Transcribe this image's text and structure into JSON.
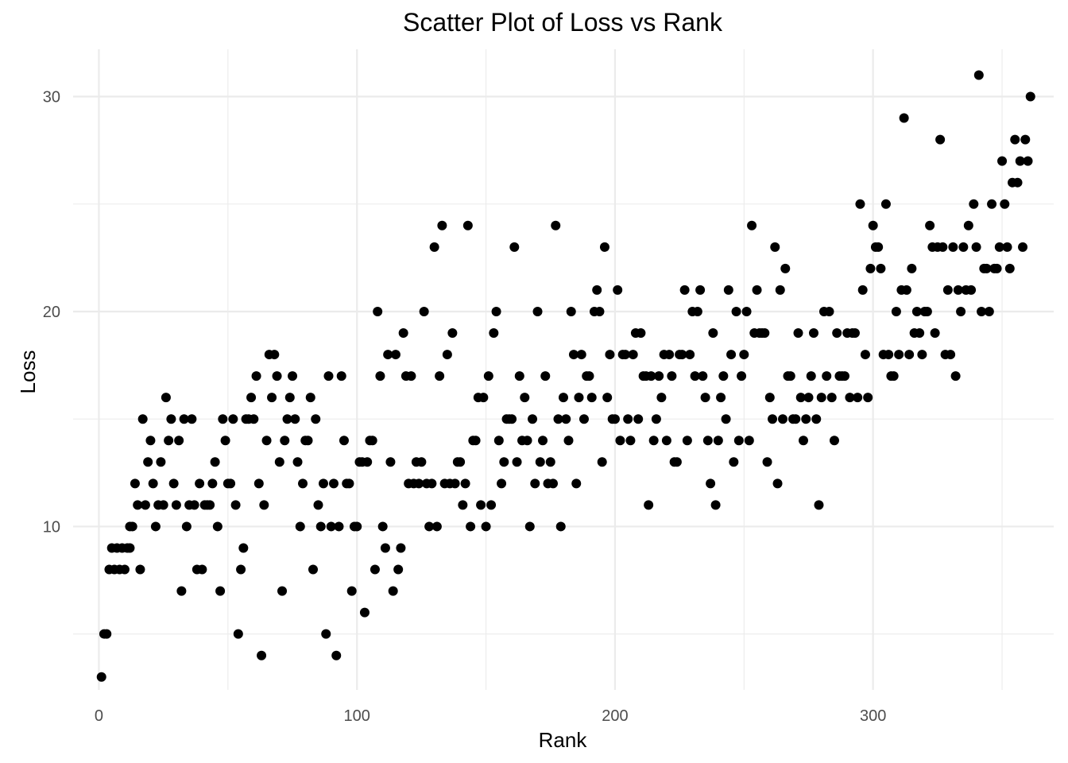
{
  "chart_data": {
    "type": "scatter",
    "title": "Scatter Plot of Loss vs Rank",
    "xlabel": "Rank",
    "ylabel": "Loss",
    "xlim": [
      -10,
      370
    ],
    "ylim": [
      2.4,
      32.2
    ],
    "x_ticks": [
      0,
      100,
      200,
      300
    ],
    "y_ticks": [
      10,
      20,
      30
    ],
    "x_tick_labels": [
      "0",
      "100",
      "200",
      "300"
    ],
    "y_tick_labels": [
      "10",
      "20",
      "30"
    ],
    "grid": true,
    "point_color": "#000000",
    "points": [
      [
        1,
        3
      ],
      [
        2,
        5
      ],
      [
        3,
        5
      ],
      [
        4,
        8
      ],
      [
        5,
        9
      ],
      [
        6,
        8
      ],
      [
        7,
        9
      ],
      [
        8,
        8
      ],
      [
        9,
        9
      ],
      [
        10,
        8
      ],
      [
        11,
        9
      ],
      [
        12,
        9
      ],
      [
        12,
        10
      ],
      [
        13,
        10
      ],
      [
        14,
        12
      ],
      [
        15,
        11
      ],
      [
        16,
        8
      ],
      [
        17,
        15
      ],
      [
        18,
        11
      ],
      [
        19,
        13
      ],
      [
        20,
        14
      ],
      [
        21,
        12
      ],
      [
        22,
        10
      ],
      [
        23,
        11
      ],
      [
        24,
        13
      ],
      [
        25,
        11
      ],
      [
        26,
        16
      ],
      [
        27,
        14
      ],
      [
        28,
        15
      ],
      [
        29,
        12
      ],
      [
        30,
        11
      ],
      [
        31,
        14
      ],
      [
        32,
        7
      ],
      [
        33,
        15
      ],
      [
        34,
        10
      ],
      [
        35,
        11
      ],
      [
        36,
        15
      ],
      [
        37,
        11
      ],
      [
        38,
        8
      ],
      [
        39,
        12
      ],
      [
        40,
        8
      ],
      [
        41,
        11
      ],
      [
        42,
        11
      ],
      [
        43,
        11
      ],
      [
        44,
        12
      ],
      [
        45,
        13
      ],
      [
        46,
        10
      ],
      [
        47,
        7
      ],
      [
        48,
        15
      ],
      [
        49,
        14
      ],
      [
        50,
        12
      ],
      [
        51,
        12
      ],
      [
        52,
        15
      ],
      [
        53,
        11
      ],
      [
        54,
        5
      ],
      [
        55,
        8
      ],
      [
        56,
        9
      ],
      [
        57,
        15
      ],
      [
        58,
        15
      ],
      [
        59,
        16
      ],
      [
        60,
        15
      ],
      [
        61,
        17
      ],
      [
        62,
        12
      ],
      [
        63,
        4
      ],
      [
        64,
        11
      ],
      [
        65,
        14
      ],
      [
        66,
        18
      ],
      [
        67,
        16
      ],
      [
        68,
        18
      ],
      [
        69,
        17
      ],
      [
        70,
        13
      ],
      [
        71,
        7
      ],
      [
        72,
        14
      ],
      [
        73,
        15
      ],
      [
        74,
        16
      ],
      [
        75,
        17
      ],
      [
        76,
        15
      ],
      [
        77,
        13
      ],
      [
        78,
        10
      ],
      [
        79,
        12
      ],
      [
        80,
        14
      ],
      [
        81,
        14
      ],
      [
        82,
        16
      ],
      [
        83,
        8
      ],
      [
        84,
        15
      ],
      [
        85,
        11
      ],
      [
        86,
        10
      ],
      [
        87,
        12
      ],
      [
        88,
        5
      ],
      [
        89,
        17
      ],
      [
        90,
        10
      ],
      [
        91,
        12
      ],
      [
        92,
        4
      ],
      [
        93,
        10
      ],
      [
        94,
        17
      ],
      [
        95,
        14
      ],
      [
        96,
        12
      ],
      [
        97,
        12
      ],
      [
        98,
        7
      ],
      [
        99,
        10
      ],
      [
        100,
        10
      ],
      [
        101,
        13
      ],
      [
        102,
        13
      ],
      [
        103,
        6
      ],
      [
        104,
        13
      ],
      [
        105,
        14
      ],
      [
        106,
        14
      ],
      [
        107,
        8
      ],
      [
        108,
        20
      ],
      [
        109,
        17
      ],
      [
        110,
        10
      ],
      [
        111,
        9
      ],
      [
        112,
        18
      ],
      [
        113,
        13
      ],
      [
        114,
        7
      ],
      [
        115,
        18
      ],
      [
        116,
        8
      ],
      [
        117,
        9
      ],
      [
        118,
        19
      ],
      [
        119,
        17
      ],
      [
        120,
        12
      ],
      [
        121,
        17
      ],
      [
        122,
        12
      ],
      [
        123,
        13
      ],
      [
        124,
        12
      ],
      [
        125,
        13
      ],
      [
        126,
        20
      ],
      [
        127,
        12
      ],
      [
        128,
        10
      ],
      [
        129,
        12
      ],
      [
        130,
        23
      ],
      [
        131,
        10
      ],
      [
        132,
        17
      ],
      [
        133,
        24
      ],
      [
        134,
        12
      ],
      [
        135,
        18
      ],
      [
        136,
        12
      ],
      [
        137,
        19
      ],
      [
        138,
        12
      ],
      [
        139,
        13
      ],
      [
        140,
        13
      ],
      [
        141,
        11
      ],
      [
        142,
        12
      ],
      [
        143,
        24
      ],
      [
        144,
        10
      ],
      [
        145,
        14
      ],
      [
        146,
        14
      ],
      [
        147,
        16
      ],
      [
        148,
        11
      ],
      [
        149,
        16
      ],
      [
        150,
        10
      ],
      [
        151,
        17
      ],
      [
        152,
        11
      ],
      [
        153,
        19
      ],
      [
        154,
        20
      ],
      [
        155,
        14
      ],
      [
        156,
        12
      ],
      [
        157,
        13
      ],
      [
        158,
        15
      ],
      [
        159,
        15
      ],
      [
        160,
        15
      ],
      [
        161,
        23
      ],
      [
        162,
        13
      ],
      [
        163,
        17
      ],
      [
        164,
        14
      ],
      [
        165,
        16
      ],
      [
        166,
        14
      ],
      [
        167,
        10
      ],
      [
        168,
        15
      ],
      [
        169,
        12
      ],
      [
        170,
        20
      ],
      [
        171,
        13
      ],
      [
        172,
        14
      ],
      [
        173,
        17
      ],
      [
        174,
        12
      ],
      [
        175,
        13
      ],
      [
        176,
        12
      ],
      [
        177,
        24
      ],
      [
        178,
        15
      ],
      [
        179,
        10
      ],
      [
        180,
        16
      ],
      [
        181,
        15
      ],
      [
        182,
        14
      ],
      [
        183,
        20
      ],
      [
        184,
        18
      ],
      [
        185,
        12
      ],
      [
        186,
        16
      ],
      [
        187,
        18
      ],
      [
        188,
        15
      ],
      [
        189,
        17
      ],
      [
        190,
        17
      ],
      [
        191,
        16
      ],
      [
        192,
        20
      ],
      [
        193,
        21
      ],
      [
        194,
        20
      ],
      [
        195,
        13
      ],
      [
        196,
        23
      ],
      [
        197,
        16
      ],
      [
        198,
        18
      ],
      [
        199,
        15
      ],
      [
        200,
        15
      ],
      [
        201,
        21
      ],
      [
        202,
        14
      ],
      [
        203,
        18
      ],
      [
        204,
        18
      ],
      [
        205,
        15
      ],
      [
        206,
        14
      ],
      [
        207,
        18
      ],
      [
        208,
        19
      ],
      [
        209,
        15
      ],
      [
        210,
        19
      ],
      [
        211,
        17
      ],
      [
        212,
        17
      ],
      [
        213,
        11
      ],
      [
        214,
        17
      ],
      [
        215,
        14
      ],
      [
        216,
        15
      ],
      [
        217,
        17
      ],
      [
        218,
        16
      ],
      [
        219,
        18
      ],
      [
        220,
        14
      ],
      [
        221,
        18
      ],
      [
        222,
        17
      ],
      [
        223,
        13
      ],
      [
        224,
        13
      ],
      [
        225,
        18
      ],
      [
        226,
        18
      ],
      [
        227,
        21
      ],
      [
        228,
        14
      ],
      [
        229,
        18
      ],
      [
        230,
        20
      ],
      [
        231,
        17
      ],
      [
        232,
        20
      ],
      [
        233,
        21
      ],
      [
        234,
        17
      ],
      [
        235,
        16
      ],
      [
        236,
        14
      ],
      [
        237,
        12
      ],
      [
        238,
        19
      ],
      [
        239,
        11
      ],
      [
        240,
        14
      ],
      [
        241,
        16
      ],
      [
        242,
        17
      ],
      [
        243,
        15
      ],
      [
        244,
        21
      ],
      [
        245,
        18
      ],
      [
        246,
        13
      ],
      [
        247,
        20
      ],
      [
        248,
        14
      ],
      [
        249,
        17
      ],
      [
        250,
        18
      ],
      [
        251,
        20
      ],
      [
        252,
        14
      ],
      [
        253,
        24
      ],
      [
        254,
        19
      ],
      [
        255,
        21
      ],
      [
        256,
        19
      ],
      [
        257,
        19
      ],
      [
        258,
        19
      ],
      [
        259,
        13
      ],
      [
        260,
        16
      ],
      [
        261,
        15
      ],
      [
        262,
        23
      ],
      [
        263,
        12
      ],
      [
        264,
        21
      ],
      [
        265,
        15
      ],
      [
        266,
        22
      ],
      [
        267,
        17
      ],
      [
        268,
        17
      ],
      [
        269,
        15
      ],
      [
        270,
        15
      ],
      [
        271,
        19
      ],
      [
        272,
        16
      ],
      [
        273,
        14
      ],
      [
        274,
        15
      ],
      [
        275,
        16
      ],
      [
        276,
        17
      ],
      [
        277,
        19
      ],
      [
        278,
        15
      ],
      [
        279,
        11
      ],
      [
        280,
        16
      ],
      [
        281,
        20
      ],
      [
        282,
        17
      ],
      [
        283,
        20
      ],
      [
        284,
        16
      ],
      [
        285,
        14
      ],
      [
        286,
        19
      ],
      [
        287,
        17
      ],
      [
        288,
        17
      ],
      [
        289,
        17
      ],
      [
        290,
        19
      ],
      [
        291,
        16
      ],
      [
        292,
        19
      ],
      [
        293,
        19
      ],
      [
        294,
        16
      ],
      [
        295,
        25
      ],
      [
        296,
        21
      ],
      [
        297,
        18
      ],
      [
        298,
        16
      ],
      [
        299,
        22
      ],
      [
        300,
        24
      ],
      [
        301,
        23
      ],
      [
        302,
        23
      ],
      [
        303,
        22
      ],
      [
        304,
        18
      ],
      [
        305,
        25
      ],
      [
        306,
        18
      ],
      [
        307,
        17
      ],
      [
        308,
        17
      ],
      [
        309,
        20
      ],
      [
        310,
        18
      ],
      [
        311,
        21
      ],
      [
        312,
        29
      ],
      [
        313,
        21
      ],
      [
        314,
        18
      ],
      [
        315,
        22
      ],
      [
        316,
        19
      ],
      [
        317,
        20
      ],
      [
        318,
        19
      ],
      [
        319,
        18
      ],
      [
        320,
        20
      ],
      [
        321,
        20
      ],
      [
        322,
        24
      ],
      [
        323,
        23
      ],
      [
        324,
        19
      ],
      [
        325,
        23
      ],
      [
        326,
        28
      ],
      [
        327,
        23
      ],
      [
        328,
        18
      ],
      [
        329,
        21
      ],
      [
        330,
        18
      ],
      [
        331,
        23
      ],
      [
        332,
        17
      ],
      [
        333,
        21
      ],
      [
        334,
        20
      ],
      [
        335,
        23
      ],
      [
        336,
        21
      ],
      [
        337,
        24
      ],
      [
        338,
        21
      ],
      [
        339,
        25
      ],
      [
        340,
        23
      ],
      [
        341,
        31
      ],
      [
        342,
        20
      ],
      [
        343,
        22
      ],
      [
        344,
        22
      ],
      [
        345,
        20
      ],
      [
        346,
        25
      ],
      [
        347,
        22
      ],
      [
        348,
        22
      ],
      [
        349,
        23
      ],
      [
        350,
        27
      ],
      [
        351,
        25
      ],
      [
        352,
        23
      ],
      [
        353,
        22
      ],
      [
        354,
        26
      ],
      [
        355,
        28
      ],
      [
        356,
        26
      ],
      [
        357,
        27
      ],
      [
        358,
        23
      ],
      [
        359,
        28
      ],
      [
        360,
        27
      ],
      [
        361,
        30
      ]
    ]
  }
}
